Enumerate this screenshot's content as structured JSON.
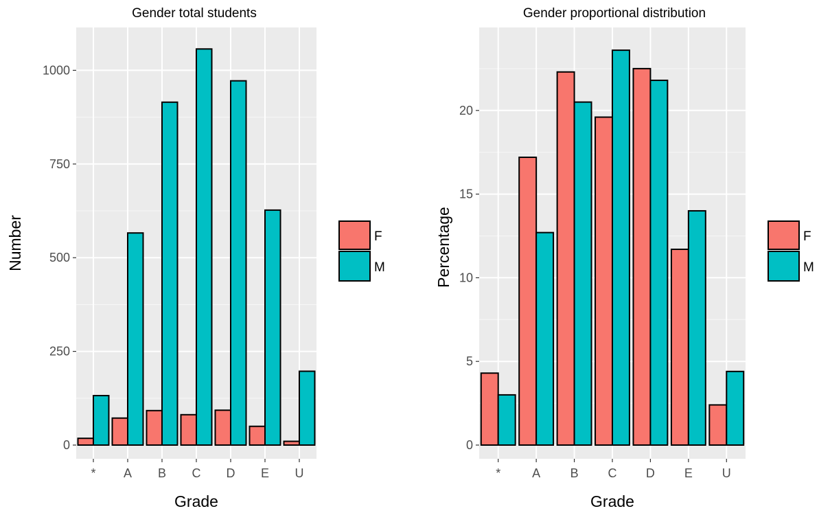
{
  "chart_data": [
    {
      "type": "bar",
      "title": "Gender total students",
      "xlabel": "Grade",
      "ylabel": "Number",
      "categories": [
        "*",
        "A",
        "B",
        "C",
        "D",
        "E",
        "U"
      ],
      "series": [
        {
          "name": "F",
          "color": "#F8766D",
          "values": [
            18,
            72,
            92,
            81,
            93,
            50,
            10
          ]
        },
        {
          "name": "M",
          "color": "#00BFC4",
          "values": [
            132,
            566,
            915,
            1057,
            972,
            627,
            197
          ]
        }
      ],
      "ylim": [
        0,
        1100
      ],
      "yticks": [
        0,
        250,
        500,
        750,
        1000
      ],
      "grid": true,
      "legend_placement": "right"
    },
    {
      "type": "bar",
      "title": "Gender proportional distribution",
      "xlabel": "Grade",
      "ylabel": "Percentage",
      "categories": [
        "*",
        "A",
        "B",
        "C",
        "D",
        "E",
        "U"
      ],
      "series": [
        {
          "name": "F",
          "color": "#F8766D",
          "values": [
            4.3,
            17.2,
            22.3,
            19.6,
            22.5,
            11.7,
            2.4
          ]
        },
        {
          "name": "M",
          "color": "#00BFC4",
          "values": [
            3.0,
            12.7,
            20.5,
            23.6,
            21.8,
            14.0,
            4.4
          ]
        }
      ],
      "ylim": [
        0,
        25
      ],
      "yticks": [
        0,
        5,
        10,
        15,
        20
      ],
      "grid": true,
      "legend_placement": "right"
    }
  ]
}
